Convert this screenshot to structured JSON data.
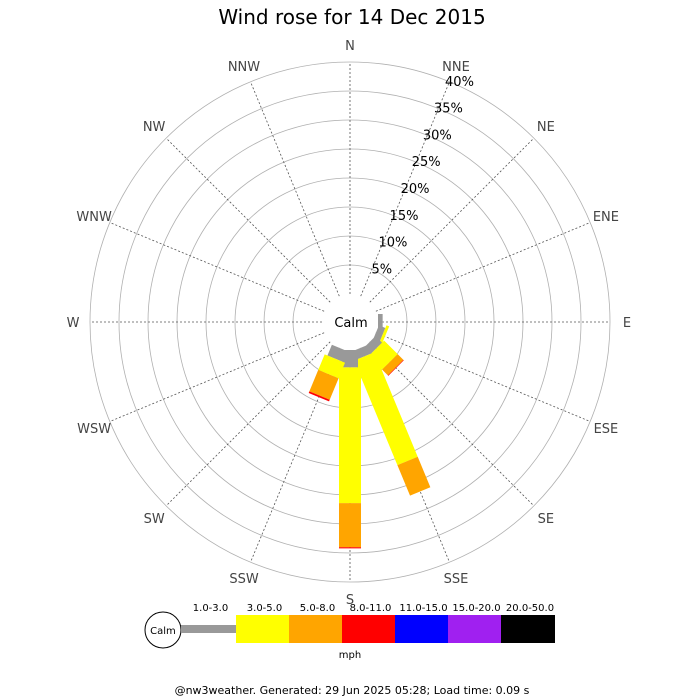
{
  "chart_data": {
    "type": "wind-rose",
    "title": "Wind rose for 14 Dec 2015",
    "directions": [
      "N",
      "NNE",
      "NE",
      "ENE",
      "E",
      "ESE",
      "SE",
      "SSE",
      "S",
      "SSW",
      "SW",
      "WSW",
      "W",
      "WNW",
      "NW",
      "NNW"
    ],
    "radial_max": 40,
    "radial_ticks": [
      {
        "value": 5,
        "label": "5%"
      },
      {
        "value": 10,
        "label": "10%"
      },
      {
        "value": 15,
        "label": "15%"
      },
      {
        "value": 20,
        "label": "20%"
      },
      {
        "value": 25,
        "label": "25%"
      },
      {
        "value": 30,
        "label": "30%"
      },
      {
        "value": 35,
        "label": "35%"
      },
      {
        "value": 40,
        "label": "40%"
      }
    ],
    "calm_label": "Calm",
    "units": "mph",
    "speed_bins": [
      {
        "label": "1.0-3.0",
        "color": "#999999"
      },
      {
        "label": "3.0-5.0",
        "color": "#ffff00"
      },
      {
        "label": "5.0-8.0",
        "color": "#ffa500"
      },
      {
        "label": "8.0-11.0",
        "color": "#ff0000"
      },
      {
        "label": "11.0-15.0",
        "color": "#0000ff"
      },
      {
        "label": "15.0-20.0",
        "color": "#a020f0"
      },
      {
        "label": "20.0-50.0",
        "color": "#000000"
      }
    ],
    "series": [
      {
        "direction": "E",
        "values": [
          0.8,
          0,
          0,
          0,
          0,
          0,
          0
        ]
      },
      {
        "direction": "ESE",
        "values": [
          1.2,
          0.5,
          0,
          0,
          0,
          0,
          0
        ]
      },
      {
        "direction": "SE",
        "values": [
          1.6,
          3.3,
          1.4,
          0.1,
          0,
          0,
          0
        ]
      },
      {
        "direction": "SSE",
        "values": [
          1.6,
          19.5,
          5.7,
          0,
          0,
          0,
          0
        ]
      },
      {
        "direction": "S",
        "values": [
          3.0,
          23.4,
          7.6,
          0.2,
          0,
          0,
          0
        ]
      },
      {
        "direction": "SSW",
        "values": [
          2.0,
          2.9,
          4.0,
          0.3,
          0,
          0,
          0
        ]
      }
    ]
  },
  "footer": "@nw3weather. Generated: 29 Jun 2025 05:28; Load time: 0.09 s"
}
